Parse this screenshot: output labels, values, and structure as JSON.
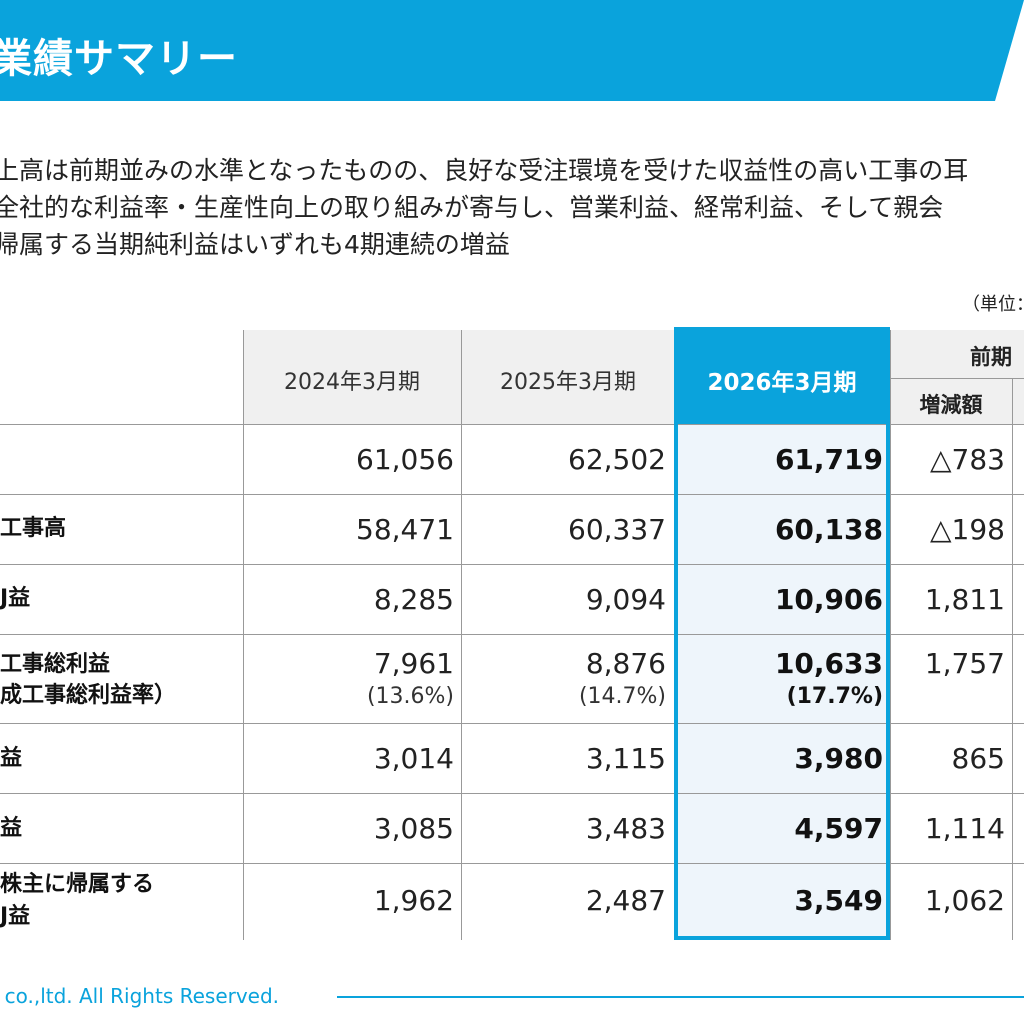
{
  "title": "業績サマリー",
  "intro_lines": [
    "上高は前期並みの水準となったものの、良好な受注環境を受けた収益性の高い工事の耳",
    "全社的な利益率・生産性向上の取り組みが寄与し、営業利益、経常利益、そして親会",
    "帰属する当期純利益はいずれも4期連続の増益"
  ],
  "unit_note": "（単位：",
  "table": {
    "headers": {
      "fy2024": "2024年3月期",
      "fy2025": "2025年3月期",
      "fy2026": "2026年3月期",
      "yoy_group": "前期",
      "change_amount": "増減額"
    },
    "rows": [
      {
        "label_lines": [
          ""
        ],
        "fy2024": "61,056",
        "fy2025": "62,502",
        "fy2026": "61,719",
        "change": "△783"
      },
      {
        "label_lines": [
          "工事高"
        ],
        "fy2024": "58,471",
        "fy2025": "60,337",
        "fy2026": "60,138",
        "change": "△198"
      },
      {
        "label_lines": [
          "J益"
        ],
        "fy2024": "8,285",
        "fy2025": "9,094",
        "fy2026": "10,906",
        "change": "1,811"
      },
      {
        "label_lines": [
          "工事総利益",
          "成工事総利益率）"
        ],
        "fy2024": "7,961",
        "fy2024_sub": "(13.6%)",
        "fy2025": "8,876",
        "fy2025_sub": "(14.7%)",
        "fy2026": "10,633",
        "fy2026_sub": "(17.7%)",
        "change": "1,757"
      },
      {
        "label_lines": [
          "益"
        ],
        "fy2024": "3,014",
        "fy2025": "3,115",
        "fy2026": "3,980",
        "change": "865"
      },
      {
        "label_lines": [
          "益"
        ],
        "fy2024": "3,085",
        "fy2025": "3,483",
        "fy2026": "4,597",
        "change": "1,114"
      },
      {
        "label_lines": [
          "株主に帰属する",
          "J益"
        ],
        "fy2024": "1,962",
        "fy2025": "2,487",
        "fy2026": "3,549",
        "change": "1,062"
      }
    ]
  },
  "footer": "o co.,ltd. All Rights Reserved.",
  "colors": {
    "accent": "#0aa3dc",
    "highlight_fill": "#eef5fb"
  }
}
